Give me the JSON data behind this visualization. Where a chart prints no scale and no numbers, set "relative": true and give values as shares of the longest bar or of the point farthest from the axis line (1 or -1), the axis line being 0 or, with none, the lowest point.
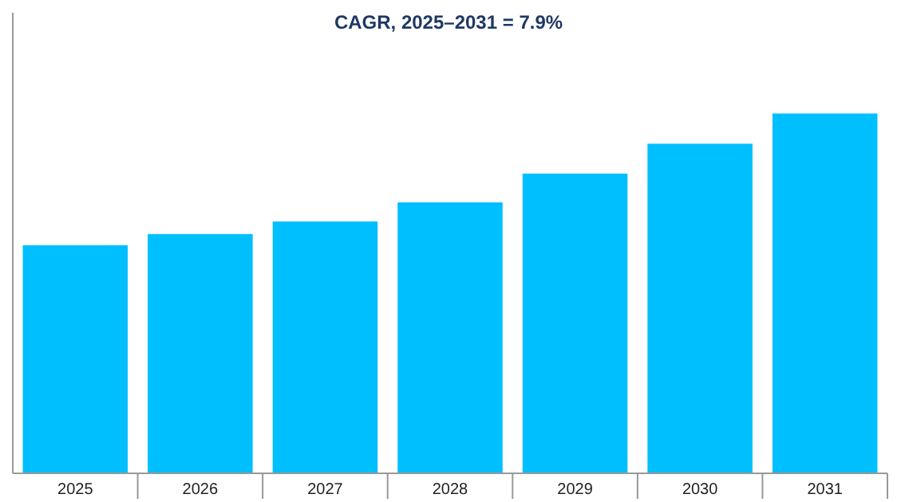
{
  "chart_data": {
    "type": "bar",
    "title": "CAGR, 2025–2031 = 7.9%",
    "relative": true,
    "categories": [
      "2025",
      "2026",
      "2027",
      "2028",
      "2029",
      "2030",
      "2031"
    ],
    "values": [
      0.634,
      0.665,
      0.7,
      0.753,
      0.833,
      0.916,
      1
    ],
    "color": "#00bfff"
  }
}
